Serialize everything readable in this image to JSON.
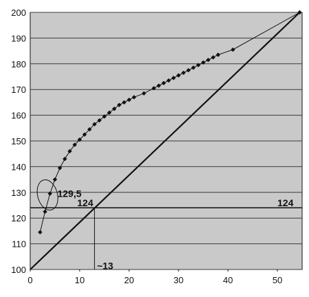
{
  "chart_data": {
    "type": "line",
    "title": "",
    "xlabel": "",
    "ylabel": "",
    "xlim": [
      0,
      55
    ],
    "ylim": [
      100,
      200
    ],
    "x_ticks": [
      0,
      10,
      20,
      30,
      40,
      50
    ],
    "y_ticks": [
      100,
      110,
      120,
      130,
      140,
      150,
      160,
      170,
      180,
      190,
      200
    ],
    "grid": "horizontal",
    "legend": "none",
    "colors": {
      "background": "#c9c9c9",
      "ink": "#111111",
      "gridline": "#3a3a3a"
    },
    "series": [
      {
        "marker": "diamond",
        "x": [
          2,
          3,
          4,
          5,
          6,
          7,
          8,
          9,
          10,
          11,
          12,
          13,
          14,
          15,
          16,
          17,
          18,
          19,
          20,
          21,
          23,
          25,
          26,
          27,
          28,
          29,
          30,
          31,
          32,
          33,
          34,
          35,
          36,
          37,
          38,
          41,
          54.5
        ],
        "y": [
          114.5,
          122.5,
          129.5,
          135,
          139.5,
          143,
          146,
          148.5,
          150.5,
          152.5,
          154.5,
          156.5,
          158,
          159.5,
          161,
          162.5,
          164,
          165,
          166,
          167,
          168.5,
          170.5,
          171.5,
          172.5,
          173.5,
          174.5,
          175.5,
          176.5,
          177.5,
          178.5,
          179.5,
          180.5,
          181.5,
          182.5,
          183.5,
          185.5,
          200
        ]
      },
      {
        "x": [
          0,
          54.5
        ],
        "y": [
          100,
          200
        ]
      }
    ],
    "reference_lines": [
      {
        "orientation": "horizontal",
        "y": 124
      },
      {
        "orientation": "vertical",
        "x": 13,
        "y_from": 100,
        "y_to": 124
      }
    ],
    "annotations": [
      {
        "text": "129,5",
        "x": 5.5,
        "y": 129.5,
        "ellipse_around": {
          "x": 3.5,
          "y": 129,
          "rx": 2,
          "ry": 6
        }
      },
      {
        "text": "124",
        "x": 9.5,
        "y": 126
      },
      {
        "text": "124",
        "x": 50,
        "y": 126
      },
      {
        "text": "~13",
        "x": 13.5,
        "y": 101.5
      }
    ]
  }
}
